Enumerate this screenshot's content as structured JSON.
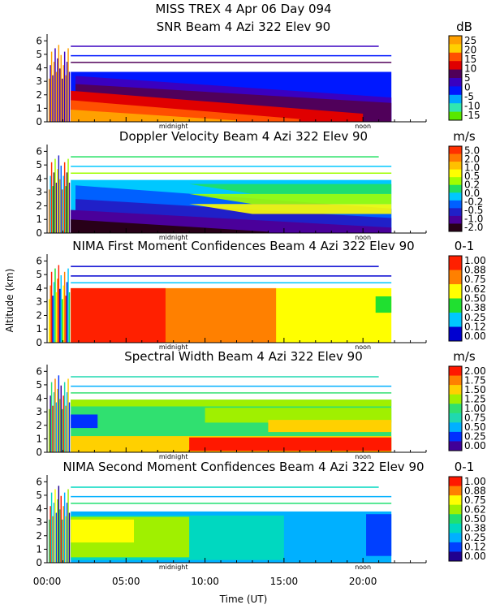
{
  "header": {
    "line1": "MISS TREX     4 Apr 06 Day 094"
  },
  "common": {
    "ylabel": "Altitude (km)",
    "xlabel": "Time (UT)",
    "xticks": [
      "00:00",
      "05:00",
      "10:00",
      "15:00",
      "20:00"
    ],
    "yticks": [
      "0",
      "1",
      "2",
      "3",
      "4",
      "5",
      "6"
    ],
    "midnight_label": "midnight",
    "noon_label": "noon"
  },
  "chart_data": [
    {
      "type": "heatmap",
      "title": "SNR Beam 4 Azi 322 Elev 90",
      "unit": "dB",
      "x_range": [
        0,
        24
      ],
      "ylim": [
        0,
        6.5
      ],
      "colorbar_labels": [
        "25",
        "20",
        "15",
        "10",
        "5",
        "0",
        "-5",
        "-10",
        "-15"
      ],
      "colors": [
        "#ffa000",
        "#ffd000",
        "#ff5000",
        "#e00000",
        "#50005a",
        "#3a00c0",
        "#0018ff",
        "#00a8ff",
        "#30e8b0",
        "#58e800"
      ],
      "layers": [
        {
          "top": 3.7,
          "start": 1.5,
          "end": 21.8,
          "top_end": 3.7,
          "colors_from": 6,
          "colors_to": 7
        },
        {
          "top": 3.4,
          "start": 1.8,
          "end": 21.8,
          "top_end": 1.8,
          "color": 5
        },
        {
          "top": 2.8,
          "start": 1.8,
          "end": 21.8,
          "top_end": 1.4,
          "color": 4
        },
        {
          "top": 2.3,
          "start": 1.5,
          "end": 20.0,
          "top_end": 0.6,
          "color": 3
        },
        {
          "top": 1.6,
          "start": 1.5,
          "end": 16.0,
          "top_end": 0.2,
          "color": 2
        },
        {
          "top": 0.9,
          "start": 1.5,
          "end": 12.0,
          "top_end": 0.1,
          "color": 0
        }
      ]
    },
    {
      "type": "heatmap",
      "title": "Doppler Velocity Beam 4 Azi 322 Elev 90",
      "unit": "m/s",
      "x_range": [
        0,
        24
      ],
      "ylim": [
        0,
        6.5
      ],
      "colorbar_labels": [
        "5.0",
        "2.0",
        "1.0",
        "0.5",
        "0.2",
        "0.0",
        "-0.2",
        "-0.5",
        "-1.0",
        "-2.0"
      ],
      "colors": [
        "#ff3000",
        "#ff7800",
        "#ffc000",
        "#ffff00",
        "#a0ff00",
        "#20e060",
        "#00c8ff",
        "#0060ff",
        "#2020c8",
        "#4a009a",
        "#280018"
      ],
      "layers": [
        {
          "top": 3.9,
          "start": 1.5,
          "end": 21.8,
          "top_end": 3.9,
          "color": 6
        },
        {
          "top": 3.5,
          "start": 1.8,
          "end": 21.8,
          "top_end": 1.8,
          "color": 7
        },
        {
          "top": 2.5,
          "start": 1.8,
          "end": 21.8,
          "top_end": 1.1,
          "color": 8
        },
        {
          "top": 1.7,
          "start": 1.5,
          "end": 21.8,
          "top_end": 0.4,
          "color": 9
        },
        {
          "top": 1.0,
          "start": 1.5,
          "end": 14.0,
          "top_end": 0.1,
          "color": 10
        }
      ],
      "right_overlay": {
        "from": 9.0,
        "top": 3.6,
        "bottom": 1.4,
        "colors": [
          5,
          4,
          3
        ]
      }
    },
    {
      "type": "heatmap",
      "title": "NIMA First Moment Confidences Beam 4 Azi 322 Elev 90",
      "unit": "0-1",
      "x_range": [
        0,
        24
      ],
      "ylim": [
        0,
        6.5
      ],
      "colorbar_labels": [
        "1.00",
        "0.88",
        "0.75",
        "0.62",
        "0.50",
        "0.38",
        "0.25",
        "0.12",
        "0.00"
      ],
      "colors": [
        "#ff2000",
        "#ff8000",
        "#ffff00",
        "#20e030",
        "#00c8ff",
        "#0000d0"
      ],
      "blocks": [
        {
          "x0": 1.5,
          "x1": 21.8,
          "y0": 0.0,
          "y1": 4.0,
          "color": 2
        },
        {
          "x0": 1.5,
          "x1": 14.5,
          "y0": 0.0,
          "y1": 4.0,
          "color": 1
        },
        {
          "x0": 1.5,
          "x1": 7.5,
          "y0": 0.0,
          "y1": 4.0,
          "color": 0
        },
        {
          "x0": 20.8,
          "x1": 21.8,
          "y0": 2.2,
          "y1": 3.4,
          "color": 3
        }
      ]
    },
    {
      "type": "heatmap",
      "title": "Spectral Width Beam 4 Azi 322 Elev 90",
      "unit": "m/s",
      "x_range": [
        0,
        24
      ],
      "ylim": [
        0,
        6.5
      ],
      "colorbar_labels": [
        "2.00",
        "1.75",
        "1.50",
        "1.25",
        "1.00",
        "0.75",
        "0.50",
        "0.25",
        "0.00"
      ],
      "colors": [
        "#ff1800",
        "#ff8000",
        "#ffd000",
        "#a0f000",
        "#30e070",
        "#20d8b0",
        "#00b0ff",
        "#0030ff",
        "#400098"
      ],
      "blocks": [
        {
          "x0": 1.5,
          "x1": 21.8,
          "y0": 0.0,
          "y1": 3.9,
          "color": 4
        },
        {
          "x0": 1.5,
          "x1": 21.8,
          "y0": 3.4,
          "y1": 3.9,
          "color": 3
        },
        {
          "x0": 10.0,
          "x1": 21.8,
          "y0": 2.2,
          "y1": 3.3,
          "color": 3
        },
        {
          "x0": 14.0,
          "x1": 21.8,
          "y0": 1.5,
          "y1": 2.4,
          "color": 2
        },
        {
          "x0": 1.5,
          "x1": 21.8,
          "y0": 0.0,
          "y1": 1.2,
          "color": 2
        },
        {
          "x0": 9.0,
          "x1": 21.8,
          "y0": 0.1,
          "y1": 1.1,
          "color": 0
        },
        {
          "x0": 1.5,
          "x1": 3.2,
          "y0": 1.8,
          "y1": 2.8,
          "color": 7
        }
      ]
    },
    {
      "type": "heatmap",
      "title": "NIMA Second Moment Confidences Beam 4 Azi 322 Elev 90",
      "unit": "0-1",
      "x_range": [
        0,
        24
      ],
      "ylim": [
        0,
        6.5
      ],
      "colorbar_labels": [
        "1.00",
        "0.88",
        "0.75",
        "0.62",
        "0.50",
        "0.38",
        "0.25",
        "0.12",
        "0.00"
      ],
      "colors": [
        "#ff1800",
        "#ff8000",
        "#ffff00",
        "#a0f000",
        "#20e070",
        "#00d8c0",
        "#00b0ff",
        "#0040ff",
        "#200090"
      ],
      "blocks": [
        {
          "x0": 1.5,
          "x1": 21.8,
          "y0": 0.0,
          "y1": 3.8,
          "color": 6
        },
        {
          "x0": 1.5,
          "x1": 15.0,
          "y0": 0.2,
          "y1": 3.5,
          "color": 5
        },
        {
          "x0": 1.5,
          "x1": 9.0,
          "y0": 0.4,
          "y1": 3.4,
          "color": 3
        },
        {
          "x0": 1.5,
          "x1": 5.5,
          "y0": 1.5,
          "y1": 3.2,
          "color": 2
        },
        {
          "x0": 20.2,
          "x1": 21.8,
          "y0": 0.5,
          "y1": 3.6,
          "color": 7
        }
      ]
    }
  ]
}
